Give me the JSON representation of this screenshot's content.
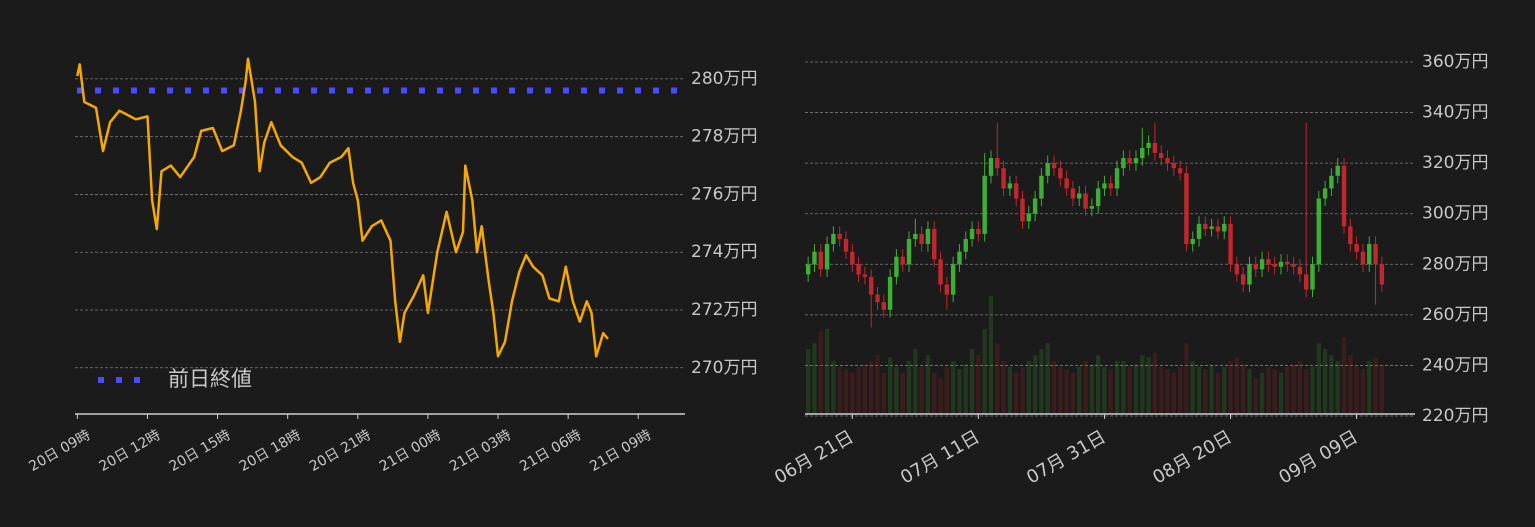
{
  "chart_data": [
    {
      "type": "line",
      "x": [
        0,
        0.1,
        0.3,
        0.8,
        1.1,
        1.4,
        1.8,
        2.5,
        3.0,
        3.2,
        3.4,
        3.6,
        4.0,
        4.4,
        5.0,
        5.3,
        5.8,
        6.2,
        6.7,
        7.0,
        7.2,
        7.3,
        7.6,
        7.8,
        8.0,
        8.3,
        8.7,
        9.2,
        9.6,
        10.0,
        10.4,
        10.8,
        11.3,
        11.6,
        11.8,
        12.0,
        12.2,
        12.6,
        13.0,
        13.4,
        13.6,
        13.8,
        14.0,
        14.4,
        14.8,
        15.0,
        15.4,
        15.8,
        16.2,
        16.5,
        16.6,
        16.9,
        17.1,
        17.3,
        17.6,
        17.8,
        18.0,
        18.3,
        18.6,
        18.9,
        19.2,
        19.5,
        19.9,
        20.2,
        20.6,
        20.9,
        21.2,
        21.5,
        21.8,
        22.0,
        22.2,
        22.5,
        22.7
      ],
      "values": [
        280.1,
        280.5,
        279.2,
        279.0,
        277.5,
        278.5,
        278.9,
        278.6,
        278.7,
        275.8,
        274.8,
        276.8,
        277.0,
        276.6,
        277.3,
        278.2,
        278.3,
        277.5,
        277.7,
        278.9,
        279.9,
        280.7,
        279.2,
        276.8,
        277.8,
        278.5,
        277.7,
        277.3,
        277.1,
        276.4,
        276.6,
        277.1,
        277.3,
        277.6,
        276.4,
        275.8,
        274.4,
        274.9,
        275.1,
        274.4,
        272.3,
        270.9,
        271.9,
        272.5,
        273.2,
        271.9,
        274.0,
        275.4,
        274.0,
        274.7,
        277.0,
        275.8,
        274.0,
        274.9,
        273.0,
        271.9,
        270.4,
        270.9,
        272.3,
        273.3,
        273.9,
        273.5,
        273.2,
        272.4,
        272.3,
        273.5,
        272.3,
        271.6,
        272.3,
        271.9,
        270.4,
        271.2,
        271.0
      ],
      "color": "#f5a800",
      "reference_line": {
        "name": "前日終値",
        "value": 279.6,
        "color": "#4b4bff"
      },
      "xlim": [
        -0.1,
        26
      ],
      "xticks": [
        {
          "value": 0,
          "label": "20日 09時"
        },
        {
          "value": 3,
          "label": "20日 12時"
        },
        {
          "value": 6,
          "label": "20日 15時"
        },
        {
          "value": 9,
          "label": "20日 18時"
        },
        {
          "value": 12,
          "label": "20日 21時"
        },
        {
          "value": 15,
          "label": "21日 00時"
        },
        {
          "value": 18,
          "label": "21日 03時"
        },
        {
          "value": 21,
          "label": "21日 06時"
        },
        {
          "value": 24,
          "label": "21日 09時"
        }
      ],
      "ylim": [
        268.4,
        281.0
      ],
      "yticks": [
        {
          "value": 270,
          "label": "270万円"
        },
        {
          "value": 272,
          "label": "272万円"
        },
        {
          "value": 274,
          "label": "274万円"
        },
        {
          "value": 276,
          "label": "276万円"
        },
        {
          "value": 278,
          "label": "278万円"
        },
        {
          "value": 280,
          "label": "280万円"
        }
      ],
      "grid": true
    },
    {
      "type": "candlestick",
      "categories": [
        null,
        null,
        null,
        null,
        null,
        null,
        null,
        "06月 21日",
        null,
        null,
        null,
        null,
        null,
        null,
        null,
        null,
        null,
        null,
        null,
        null,
        null,
        null,
        null,
        null,
        null,
        null,
        null,
        "07月 11日",
        null,
        null,
        null,
        null,
        null,
        null,
        null,
        null,
        null,
        null,
        null,
        null,
        null,
        null,
        null,
        null,
        null,
        null,
        null,
        "07月 31日",
        null,
        null,
        null,
        null,
        null,
        null,
        null,
        null,
        null,
        null,
        null,
        null,
        null,
        null,
        null,
        null,
        null,
        null,
        null,
        "08月 20日",
        null,
        null,
        null,
        null,
        null,
        null,
        null,
        null,
        null,
        null,
        null,
        null,
        null,
        null,
        null,
        null,
        null,
        null,
        null,
        "09月 09日",
        null,
        null,
        null,
        null
      ],
      "open": [
        276,
        280,
        285,
        278,
        288,
        292,
        290,
        285,
        280,
        276,
        275,
        268,
        265,
        262,
        275,
        283,
        280,
        290,
        292,
        288,
        294,
        282,
        272,
        268,
        280,
        285,
        290,
        294,
        292,
        315,
        322,
        318,
        310,
        312,
        306,
        297,
        300,
        306,
        315,
        320,
        318,
        314,
        310,
        306,
        308,
        302,
        303,
        310,
        312,
        310,
        318,
        322,
        320,
        322,
        326,
        328,
        324,
        322,
        320,
        318,
        316,
        288,
        290,
        296,
        294,
        295,
        293,
        296,
        280,
        276,
        272,
        280,
        278,
        282,
        280,
        279,
        281,
        280,
        279,
        276,
        270,
        280,
        306,
        310,
        315,
        319,
        295,
        288,
        285,
        280,
        288,
        280
      ],
      "high": [
        283,
        288,
        288,
        291,
        295,
        295,
        293,
        288,
        283,
        279,
        278,
        271,
        268,
        278,
        286,
        286,
        293,
        298,
        295,
        297,
        297,
        285,
        275,
        283,
        288,
        293,
        297,
        297,
        324,
        325,
        336,
        321,
        315,
        315,
        309,
        303,
        309,
        318,
        323,
        323,
        321,
        317,
        313,
        311,
        311,
        306,
        313,
        315,
        315,
        321,
        325,
        325,
        325,
        334,
        331,
        336,
        327,
        325,
        323,
        321,
        319,
        293,
        299,
        299,
        298,
        298,
        299,
        299,
        283,
        279,
        283,
        283,
        285,
        285,
        283,
        284,
        284,
        283,
        282,
        336,
        283,
        309,
        313,
        318,
        322,
        322,
        298,
        291,
        288,
        291,
        291,
        283
      ],
      "low": [
        273,
        277,
        275,
        275,
        285,
        287,
        282,
        277,
        273,
        272,
        255,
        262,
        259,
        259,
        272,
        277,
        277,
        287,
        285,
        285,
        279,
        269,
        262,
        265,
        277,
        282,
        287,
        289,
        289,
        312,
        315,
        307,
        307,
        303,
        294,
        294,
        297,
        303,
        312,
        315,
        311,
        307,
        303,
        303,
        299,
        299,
        300,
        307,
        307,
        307,
        315,
        317,
        317,
        319,
        323,
        321,
        319,
        317,
        315,
        313,
        285,
        285,
        287,
        291,
        291,
        290,
        290,
        277,
        273,
        269,
        269,
        275,
        275,
        277,
        276,
        276,
        277,
        276,
        273,
        267,
        267,
        277,
        303,
        307,
        312,
        292,
        285,
        282,
        277,
        277,
        264,
        269
      ],
      "close": [
        280,
        285,
        278,
        288,
        292,
        290,
        285,
        280,
        276,
        275,
        268,
        265,
        262,
        275,
        283,
        280,
        290,
        292,
        288,
        294,
        282,
        272,
        268,
        280,
        285,
        290,
        294,
        292,
        315,
        322,
        318,
        310,
        312,
        306,
        297,
        300,
        306,
        315,
        320,
        318,
        314,
        310,
        306,
        308,
        302,
        303,
        310,
        312,
        310,
        318,
        322,
        320,
        322,
        326,
        328,
        324,
        322,
        320,
        318,
        316,
        288,
        290,
        296,
        294,
        295,
        293,
        296,
        280,
        276,
        272,
        280,
        278,
        282,
        280,
        279,
        281,
        280,
        279,
        276,
        270,
        280,
        306,
        310,
        315,
        319,
        295,
        288,
        285,
        280,
        288,
        280,
        272
      ],
      "volume": [
        55,
        60,
        70,
        72,
        45,
        40,
        38,
        35,
        40,
        42,
        45,
        50,
        35,
        48,
        40,
        35,
        45,
        55,
        40,
        50,
        35,
        30,
        40,
        45,
        38,
        42,
        55,
        50,
        72,
        100,
        60,
        45,
        40,
        35,
        40,
        45,
        50,
        55,
        60,
        45,
        40,
        38,
        35,
        40,
        45,
        42,
        50,
        40,
        38,
        45,
        45,
        40,
        42,
        50,
        48,
        52,
        40,
        38,
        35,
        40,
        60,
        45,
        40,
        38,
        42,
        35,
        40,
        45,
        48,
        42,
        38,
        30,
        35,
        40,
        38,
        35,
        40,
        42,
        45,
        38,
        40,
        60,
        55,
        50,
        45,
        65,
        50,
        40,
        38,
        45,
        48,
        42
      ],
      "up_color": "#3cb034",
      "down_color": "#c1272d",
      "ylim": [
        220,
        360
      ],
      "yticks": [
        {
          "value": 220,
          "label": "220万円"
        },
        {
          "value": 240,
          "label": "240万円"
        },
        {
          "value": 260,
          "label": "260万円"
        },
        {
          "value": 280,
          "label": "280万円"
        },
        {
          "value": 300,
          "label": "300万円"
        },
        {
          "value": 320,
          "label": "320万円"
        },
        {
          "value": 340,
          "label": "340万円"
        },
        {
          "value": 360,
          "label": "360万円"
        }
      ],
      "grid": true
    }
  ]
}
